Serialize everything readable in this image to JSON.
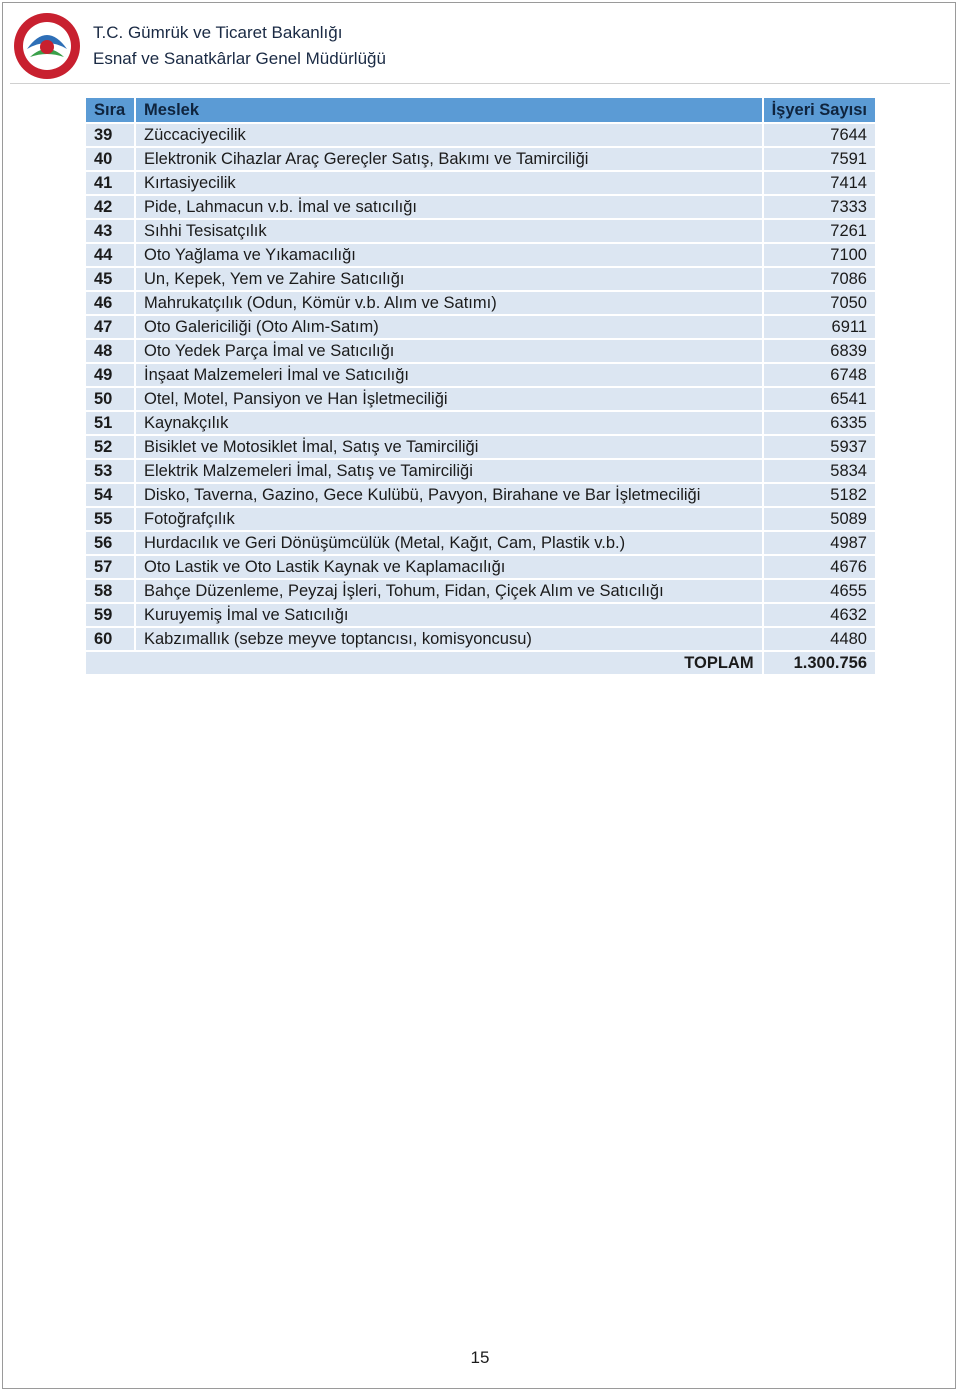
{
  "header": {
    "title": "T.C. Gümrük ve Ticaret Bakanlığı",
    "subtitle": "Esnaf ve Sanatkârlar Genel Müdürlüğü"
  },
  "table": {
    "columns": [
      "Sıra",
      "Meslek",
      "İşyeri Sayısı"
    ],
    "rows": [
      [
        "39",
        "Züccaciyecilik",
        "7644"
      ],
      [
        "40",
        "Elektronik Cihazlar Araç Gereçler Satış, Bakımı ve Tamirciliği",
        "7591"
      ],
      [
        "41",
        "Kırtasiyecilik",
        "7414"
      ],
      [
        "42",
        "Pide, Lahmacun v.b. İmal ve satıcılığı",
        "7333"
      ],
      [
        "43",
        "Sıhhi Tesisatçılık",
        "7261"
      ],
      [
        "44",
        "Oto Yağlama ve Yıkamacılığı",
        "7100"
      ],
      [
        "45",
        "Un, Kepek, Yem ve Zahire Satıcılığı",
        "7086"
      ],
      [
        "46",
        "Mahrukatçılık (Odun, Kömür v.b. Alım ve Satımı)",
        "7050"
      ],
      [
        "47",
        "Oto Galericiliği (Oto Alım-Satım)",
        "6911"
      ],
      [
        "48",
        "Oto Yedek Parça İmal ve Satıcılığı",
        "6839"
      ],
      [
        "49",
        "İnşaat Malzemeleri İmal ve Satıcılığı",
        "6748"
      ],
      [
        "50",
        "Otel, Motel, Pansiyon ve Han İşletmeciliği",
        "6541"
      ],
      [
        "51",
        "Kaynakçılık",
        "6335"
      ],
      [
        "52",
        "Bisiklet ve Motosiklet İmal, Satış ve Tamirciliği",
        "5937"
      ],
      [
        "53",
        "Elektrik Malzemeleri İmal, Satış ve Tamirciliği",
        "5834"
      ],
      [
        "54",
        "Disko, Taverna, Gazino, Gece Kulübü, Pavyon, Birahane ve Bar İşletmeciliği",
        "5182"
      ],
      [
        "55",
        "Fotoğrafçılık",
        "5089"
      ],
      [
        "56",
        "Hurdacılık ve Geri Dönüşümcülük (Metal, Kağıt, Cam, Plastik v.b.)",
        "4987"
      ],
      [
        "57",
        "Oto Lastik ve Oto Lastik Kaynak ve Kaplamacılığı",
        "4676"
      ],
      [
        "58",
        "Bahçe Düzenleme, Peyzaj İşleri, Tohum, Fidan, Çiçek Alım ve Satıcılığı",
        "4655"
      ],
      [
        "59",
        "Kuruyemiş İmal ve Satıcılığı",
        "4632"
      ],
      [
        "60",
        "Kabzımallık (sebze meyve toptancısı, komisyoncusu)",
        "4480"
      ]
    ],
    "total": {
      "label": "TOPLAM",
      "value": "1.300.756"
    }
  },
  "page_number": "15"
}
